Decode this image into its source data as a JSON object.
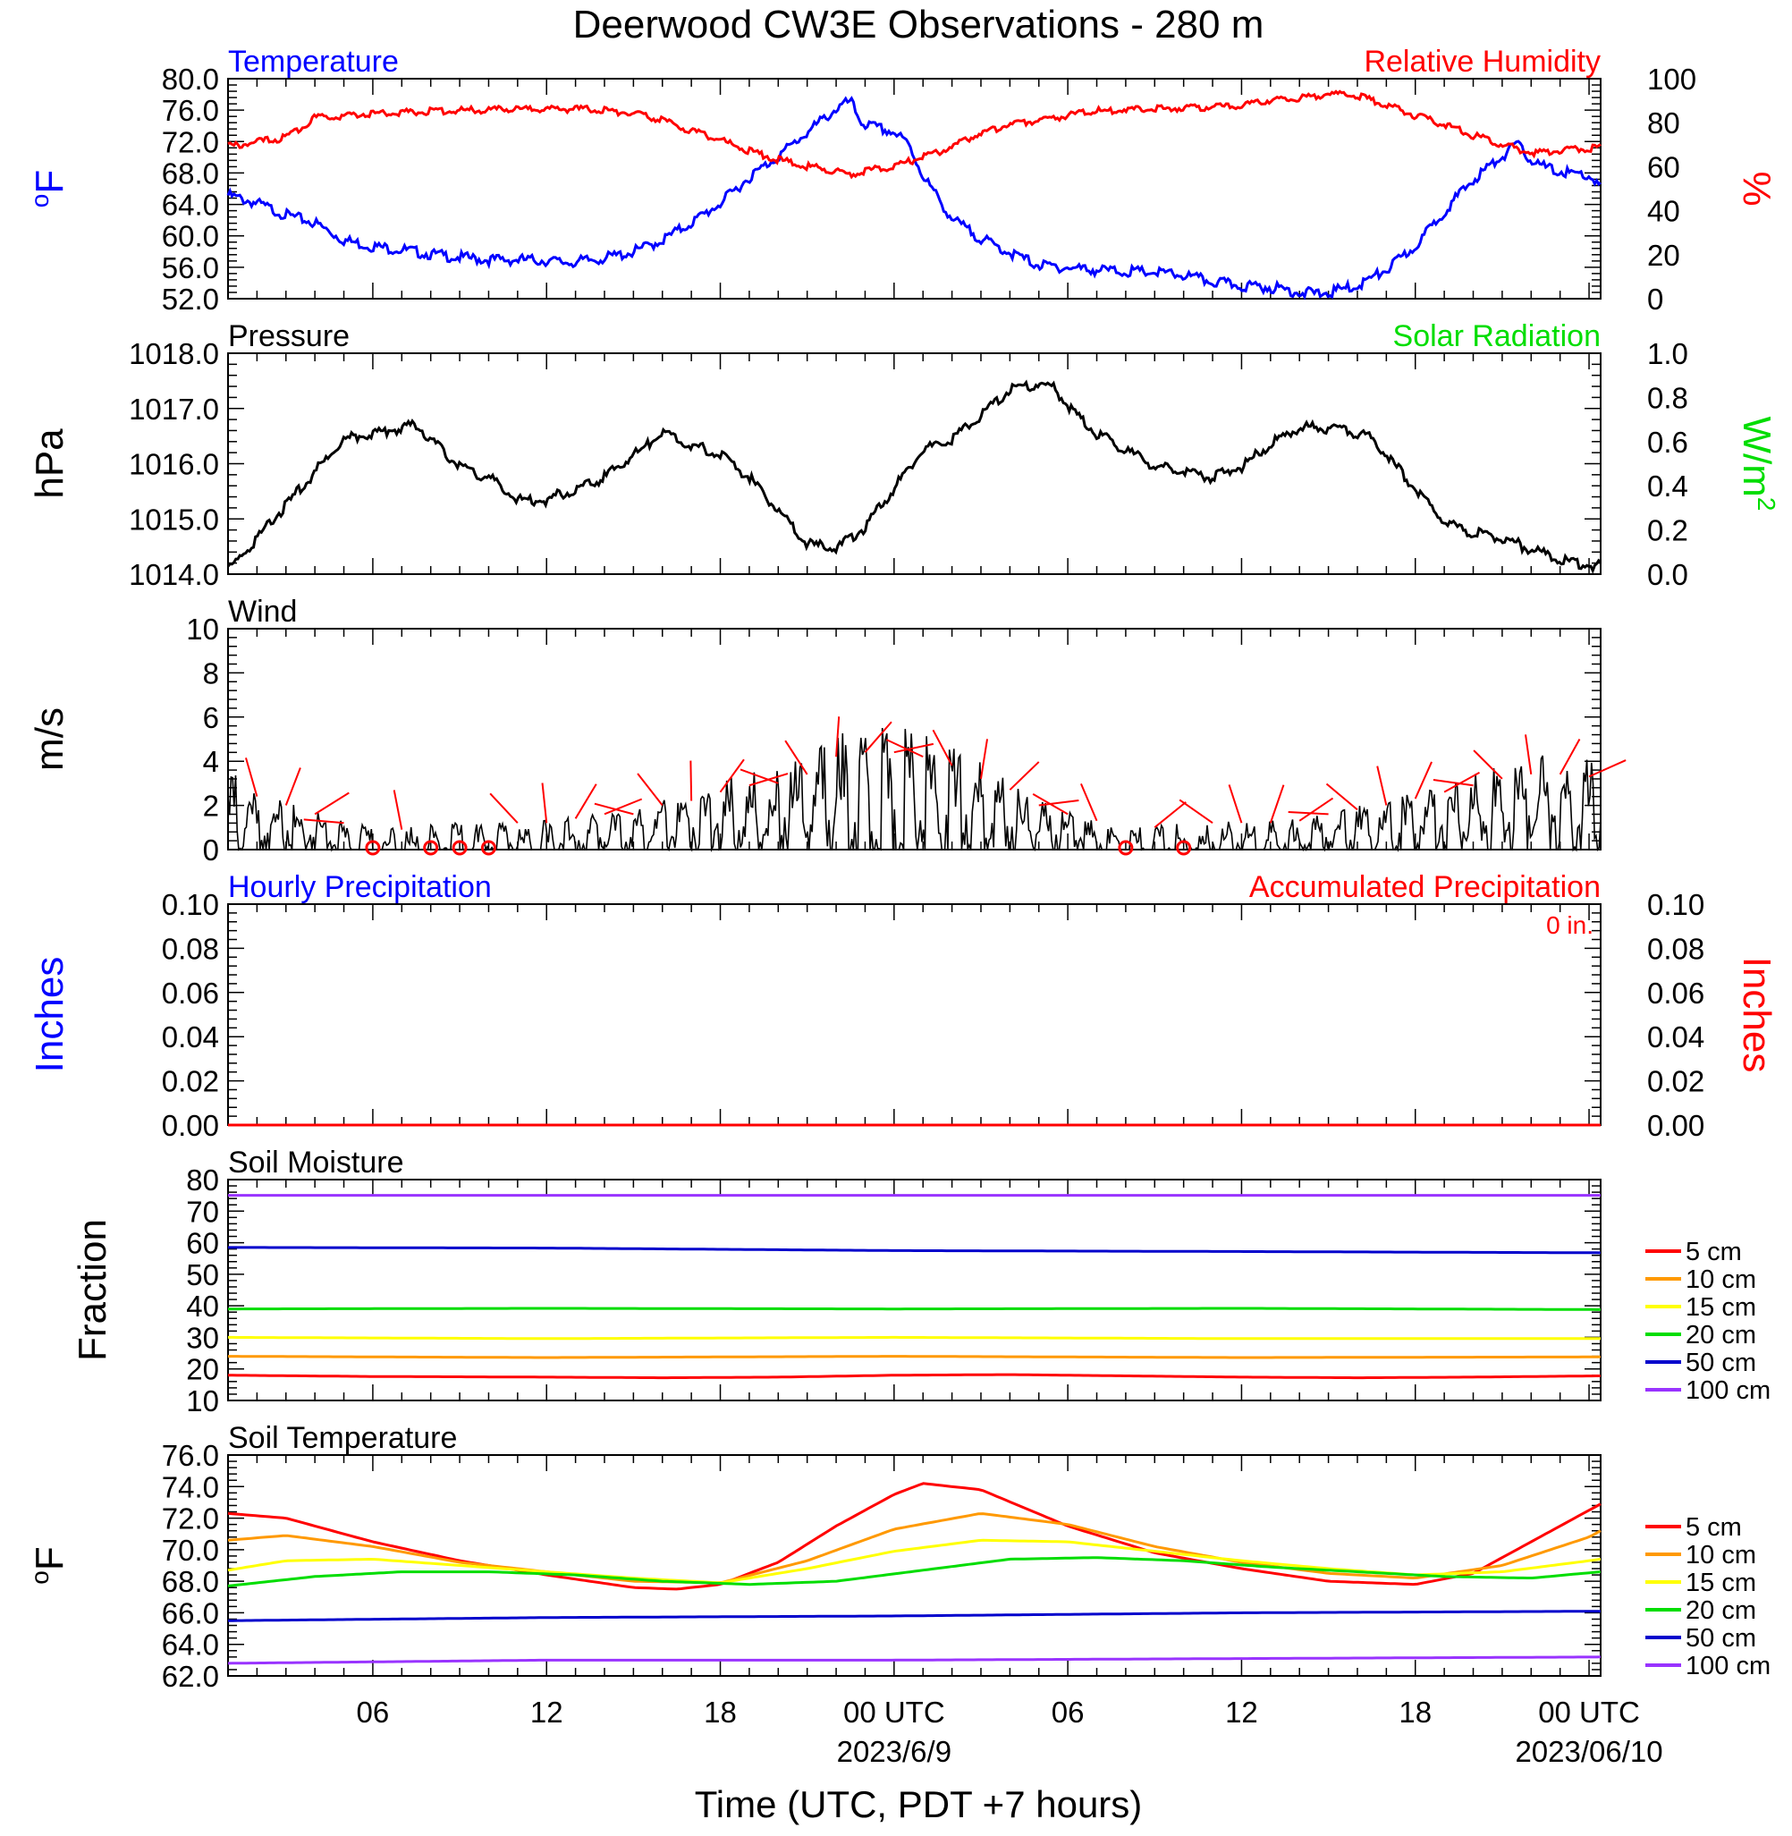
{
  "title": "Deerwood CW3E Observations - 280 m",
  "xlabel": "Time (UTC, PDT +7 hours)",
  "time_axis": {
    "ticks": [
      {
        "hour": 6,
        "label": "06"
      },
      {
        "hour": 12,
        "label": "12"
      },
      {
        "hour": 18,
        "label": "18"
      },
      {
        "hour": 24,
        "label": "00 UTC",
        "sub": "2023/6/9"
      },
      {
        "hour": 30,
        "label": "06"
      },
      {
        "hour": 36,
        "label": "12"
      },
      {
        "hour": 42,
        "label": "18"
      },
      {
        "hour": 48,
        "label": "00 UTC",
        "sub": "2023/06/10"
      }
    ],
    "range_hours": [
      1,
      48.4
    ]
  },
  "colors": {
    "blue": "#0000ff",
    "red": "#ff0000",
    "green": "#00dd00",
    "black": "#000000",
    "orange": "#ff9900",
    "yellow": "#ffff00",
    "navy": "#0000cc",
    "purple": "#9933ff"
  },
  "chart_data": [
    {
      "type": "line",
      "title_left": "Temperature",
      "title_right": "Relative Humidity",
      "ylabel_left": "oF",
      "ylabel_right": "%",
      "ylim_left": [
        52,
        80
      ],
      "yticks_left": [
        "52.0",
        "56.0",
        "60.0",
        "64.0",
        "68.0",
        "72.0",
        "76.0",
        "80.0"
      ],
      "ylim_right": [
        0,
        100
      ],
      "yticks_right": [
        "0",
        "20",
        "40",
        "60",
        "80",
        "100"
      ],
      "series": [
        {
          "name": "Temperature",
          "axis": "left",
          "color": "#0000ff",
          "x": [
            1,
            2,
            3,
            3.5,
            4,
            5,
            6,
            7,
            8,
            9,
            10,
            11,
            12,
            12.5,
            13,
            14,
            15,
            16,
            17,
            18,
            19,
            20,
            21,
            22,
            22.5,
            22.8,
            23,
            24,
            24.5,
            25,
            26,
            27,
            28,
            29,
            30,
            31,
            32,
            33,
            34,
            35,
            36,
            37,
            38,
            38.5,
            39,
            40,
            41,
            42,
            43,
            44,
            45,
            45.5,
            46,
            46.5,
            47,
            48,
            48.4
          ],
          "y": [
            65.5,
            64.5,
            63,
            62.5,
            62,
            59.8,
            59,
            58.6,
            58,
            57.6,
            57.3,
            57.3,
            57.2,
            57,
            57,
            57.5,
            58.3,
            59.8,
            62,
            64.5,
            67.8,
            70.5,
            73.5,
            76.5,
            77.5,
            75.2,
            74.5,
            73.5,
            72,
            68,
            62.5,
            60,
            58.2,
            56.6,
            56.3,
            56,
            55.8,
            55.7,
            55.3,
            54.5,
            54,
            53.8,
            53.2,
            53,
            53.1,
            54,
            56,
            59,
            63.5,
            67.5,
            70.5,
            72,
            70,
            69,
            68.5,
            68,
            66.5
          ]
        },
        {
          "name": "Relative Humidity",
          "axis": "right",
          "color": "#ff0000",
          "x": [
            1,
            2,
            3,
            4,
            5,
            6,
            7,
            8,
            9,
            10,
            11,
            12,
            13,
            14,
            15,
            16,
            17,
            18,
            19,
            20,
            21,
            22,
            22.5,
            23,
            24,
            25,
            26,
            27,
            28,
            29,
            30,
            31,
            32,
            33,
            34,
            35,
            36,
            37,
            38,
            38.5,
            39,
            40,
            41,
            42,
            43,
            44,
            45,
            46,
            47,
            48,
            48.4
          ],
          "y": [
            70,
            72,
            74,
            83,
            84,
            85,
            85.5,
            86,
            86.5,
            86.5,
            87,
            87,
            87,
            86.5,
            85,
            82,
            77,
            73,
            68,
            64,
            61,
            59,
            57,
            59,
            61,
            65,
            70,
            76,
            80,
            82,
            84,
            86,
            87,
            87,
            87.5,
            88,
            88.5,
            91,
            92,
            93,
            94,
            93,
            89,
            84,
            80,
            75,
            71,
            67,
            68,
            69,
            70
          ]
        }
      ]
    },
    {
      "type": "line",
      "title_left": "Pressure",
      "title_right": "Solar Radiation",
      "ylabel_left": "hPa",
      "ylabel_right": "W/m2",
      "ylim_left": [
        1014,
        1018
      ],
      "yticks_left": [
        "1014.0",
        "1015.0",
        "1016.0",
        "1017.0",
        "1018.0"
      ],
      "ylim_right": [
        0,
        1
      ],
      "yticks_right": [
        "0.0",
        "0.2",
        "0.4",
        "0.6",
        "0.8",
        "1.0"
      ],
      "series": [
        {
          "name": "Pressure",
          "axis": "left",
          "color": "#000000",
          "x": [
            1,
            2,
            3,
            4,
            5,
            6,
            7,
            7.5,
            8,
            9,
            10,
            11,
            12,
            13,
            14,
            15,
            16,
            17,
            18,
            19,
            20,
            21,
            22,
            23,
            24,
            25,
            26,
            27,
            28,
            29,
            29.5,
            30,
            31,
            32,
            33,
            34,
            35,
            36,
            37,
            38,
            39,
            40,
            40.5,
            41,
            42,
            43,
            44,
            45,
            46,
            47,
            48,
            48.4
          ],
          "y": [
            1014.1,
            1014.7,
            1015.3,
            1015.9,
            1016.5,
            1016.6,
            1016.7,
            1016.75,
            1016.5,
            1016.0,
            1015.8,
            1015.4,
            1015.4,
            1015.6,
            1015.8,
            1016.2,
            1016.6,
            1016.4,
            1016.2,
            1015.8,
            1015.2,
            1014.6,
            1014.5,
            1014.9,
            1015.6,
            1016.3,
            1016.5,
            1016.9,
            1017.4,
            1017.5,
            1017.45,
            1017.1,
            1016.6,
            1016.3,
            1016.0,
            1015.9,
            1015.8,
            1016.0,
            1016.4,
            1016.7,
            1016.7,
            1016.6,
            1016.5,
            1016.2,
            1015.6,
            1015.0,
            1014.8,
            1014.7,
            1014.5,
            1014.3,
            1014.2,
            1014.2
          ]
        }
      ]
    },
    {
      "type": "line",
      "title_left": "Wind",
      "ylabel_left": "m/s",
      "ylim_left": [
        0,
        10
      ],
      "yticks_left": [
        "0",
        "2",
        "4",
        "6",
        "8",
        "10"
      ],
      "series": [
        {
          "name": "Wind",
          "axis": "left",
          "color": "#000000",
          "x": [
            1,
            2,
            3,
            4,
            5,
            6,
            7,
            8,
            9,
            10,
            11,
            12,
            13,
            14,
            15,
            16,
            17,
            18,
            19,
            20,
            21,
            22,
            23,
            24,
            25,
            26,
            27,
            28,
            29,
            30,
            31,
            32,
            33,
            34,
            35,
            36,
            37,
            38,
            39,
            40,
            41,
            42,
            43,
            44,
            45,
            46,
            47,
            48,
            48.4
          ],
          "y": [
            2.5,
            2.0,
            1.6,
            1.2,
            0.8,
            0.5,
            0.5,
            0.6,
            0.7,
            0.8,
            0.8,
            0.8,
            1.0,
            1.2,
            1.2,
            1.6,
            1.8,
            2.2,
            2.5,
            2.6,
            3.0,
            3.8,
            4.0,
            4.0,
            3.8,
            3.4,
            2.8,
            2.3,
            1.6,
            1.2,
            0.9,
            0.6,
            0.6,
            0.7,
            0.8,
            0.8,
            0.8,
            0.9,
            1.2,
            1.4,
            1.6,
            1.9,
            2.2,
            2.5,
            2.8,
            3.0,
            3.0,
            2.9,
            2.6
          ]
        }
      ],
      "calm_markers_hours": [
        6,
        8,
        9,
        10,
        32,
        34
      ]
    },
    {
      "type": "line",
      "title_left": "Hourly Precipitation",
      "title_right": "Accumulated Precipitation",
      "annotation": "0 in.",
      "ylabel_left": "Inches",
      "ylabel_right": "Inches",
      "ylim_left": [
        0,
        0.1
      ],
      "yticks_left": [
        "0.00",
        "0.02",
        "0.04",
        "0.06",
        "0.08",
        "0.10"
      ],
      "ylim_right": [
        0,
        0.1
      ],
      "yticks_right": [
        "0.00",
        "0.02",
        "0.04",
        "0.06",
        "0.08",
        "0.10"
      ],
      "series": [
        {
          "name": "Accumulated Precipitation",
          "axis": "left",
          "color": "#ff0000",
          "x": [
            1,
            48.4
          ],
          "y": [
            0,
            0
          ]
        }
      ]
    },
    {
      "type": "line",
      "title_left": "Soil Moisture",
      "ylabel_left": "Fraction",
      "ylim_left": [
        10,
        80
      ],
      "yticks_left": [
        "10",
        "20",
        "30",
        "40",
        "50",
        "60",
        "70",
        "80"
      ],
      "legend": "right",
      "series": [
        {
          "name": "5 cm",
          "color": "#ff0000",
          "x": [
            1,
            6,
            12,
            16,
            20,
            24,
            28,
            32,
            36,
            40,
            44,
            48.4
          ],
          "y": [
            18,
            17.6,
            17.4,
            17.2,
            17.4,
            18,
            18.2,
            17.8,
            17.4,
            17.2,
            17.4,
            17.8
          ]
        },
        {
          "name": "10 cm",
          "color": "#ff9900",
          "x": [
            1,
            12,
            24,
            36,
            48.4
          ],
          "y": [
            24,
            23.6,
            24,
            23.6,
            23.8
          ]
        },
        {
          "name": "15 cm",
          "color": "#ffff00",
          "x": [
            1,
            12,
            24,
            36,
            48.4
          ],
          "y": [
            30,
            29.6,
            30,
            29.6,
            29.6
          ]
        },
        {
          "name": "20 cm",
          "color": "#00dd00",
          "x": [
            1,
            12,
            24,
            36,
            48.4
          ],
          "y": [
            39,
            39.2,
            39,
            39.2,
            38.8
          ]
        },
        {
          "name": "50 cm",
          "color": "#0000cc",
          "x": [
            1,
            12,
            24,
            36,
            48.4
          ],
          "y": [
            58.5,
            58.3,
            57.5,
            57.2,
            56.8
          ]
        },
        {
          "name": "100 cm",
          "color": "#9933ff",
          "x": [
            1,
            24,
            48.4
          ],
          "y": [
            75,
            75,
            75
          ]
        }
      ]
    },
    {
      "type": "line",
      "title_left": "Soil Temperature",
      "ylabel_left": "oF",
      "ylim_left": [
        62,
        76
      ],
      "yticks_left": [
        "62.0",
        "64.0",
        "66.0",
        "68.0",
        "70.0",
        "72.0",
        "74.0",
        "76.0"
      ],
      "legend": "right",
      "series": [
        {
          "name": "5 cm",
          "color": "#ff0000",
          "x": [
            1,
            3,
            6,
            9,
            12,
            15,
            16.5,
            18,
            20,
            22,
            24,
            25,
            27,
            30,
            33,
            36,
            39,
            42,
            44,
            46,
            48,
            48.4
          ],
          "y": [
            72.3,
            72.0,
            70.5,
            69.3,
            68.4,
            67.6,
            67.5,
            67.8,
            69.2,
            71.5,
            73.5,
            74.2,
            73.8,
            71.5,
            69.8,
            68.8,
            68.0,
            67.8,
            68.5,
            70.5,
            72.5,
            72.9
          ]
        },
        {
          "name": "10 cm",
          "color": "#ff9900",
          "x": [
            1,
            3,
            6,
            9,
            12,
            15,
            18,
            21,
            24,
            27,
            30,
            33,
            36,
            39,
            42,
            45,
            48,
            48.4
          ],
          "y": [
            70.6,
            70.9,
            70.2,
            69.2,
            68.6,
            68.0,
            67.9,
            69.3,
            71.3,
            72.3,
            71.6,
            70.2,
            69.2,
            68.5,
            68.2,
            69.0,
            70.8,
            71.2
          ]
        },
        {
          "name": "15 cm",
          "color": "#ffff00",
          "x": [
            1,
            3,
            6,
            9,
            12,
            15,
            18,
            21,
            24,
            27,
            30,
            33,
            36,
            39,
            42,
            45,
            48,
            48.4
          ],
          "y": [
            68.7,
            69.3,
            69.4,
            69.0,
            68.6,
            68.2,
            67.9,
            68.8,
            69.9,
            70.6,
            70.5,
            69.9,
            69.3,
            68.8,
            68.4,
            68.6,
            69.3,
            69.4
          ]
        },
        {
          "name": "20 cm",
          "color": "#00dd00",
          "x": [
            1,
            4,
            7,
            10,
            13,
            16,
            19,
            22,
            25,
            28,
            31,
            34,
            37,
            40,
            43,
            46,
            48.4
          ],
          "y": [
            67.7,
            68.3,
            68.6,
            68.6,
            68.4,
            68.0,
            67.8,
            68.0,
            68.7,
            69.4,
            69.5,
            69.3,
            68.9,
            68.6,
            68.3,
            68.2,
            68.6
          ]
        },
        {
          "name": "50 cm",
          "color": "#0000cc",
          "x": [
            1,
            12,
            24,
            36,
            48.4
          ],
          "y": [
            65.5,
            65.7,
            65.8,
            66.0,
            66.1
          ]
        },
        {
          "name": "100 cm",
          "color": "#9933ff",
          "x": [
            1,
            12,
            24,
            36,
            48.4
          ],
          "y": [
            62.8,
            63.0,
            63.0,
            63.1,
            63.2
          ]
        }
      ]
    }
  ]
}
